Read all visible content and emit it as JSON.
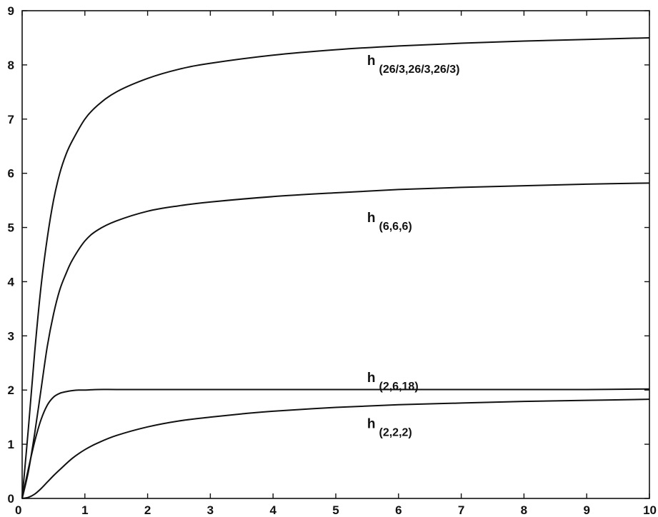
{
  "chart_data": {
    "type": "line",
    "title": "",
    "xlabel": "",
    "ylabel": "",
    "xlim": [
      0,
      10
    ],
    "ylim": [
      0,
      9
    ],
    "grid": false,
    "x_ticks": [
      0,
      1,
      2,
      3,
      4,
      5,
      6,
      7,
      8,
      9,
      10
    ],
    "y_ticks": [
      0,
      1,
      2,
      3,
      4,
      5,
      6,
      7,
      8,
      9
    ],
    "line_color": "#111111",
    "series": [
      {
        "label_main": "h",
        "label_sub": "(26/3,26/3,26/3)",
        "label_at": [
          5.5,
          8.0
        ],
        "x": [
          0,
          0.1,
          0.2,
          0.3,
          0.4,
          0.5,
          0.6,
          0.7,
          0.8,
          1.0,
          1.2,
          1.5,
          2.0,
          2.5,
          3.0,
          4.0,
          5.0,
          6.0,
          7.0,
          8.0,
          9.0,
          10.0
        ],
        "y": [
          0,
          1.3,
          2.7,
          3.9,
          4.8,
          5.5,
          6.0,
          6.35,
          6.6,
          7.0,
          7.25,
          7.5,
          7.75,
          7.92,
          8.03,
          8.18,
          8.28,
          8.35,
          8.4,
          8.44,
          8.47,
          8.5
        ]
      },
      {
        "label_main": "h",
        "label_sub": "(6,6,6)",
        "label_at": [
          5.5,
          5.1
        ],
        "x": [
          0,
          0.1,
          0.2,
          0.3,
          0.4,
          0.5,
          0.6,
          0.7,
          0.8,
          1.0,
          1.2,
          1.5,
          2.0,
          2.5,
          3.0,
          4.0,
          5.0,
          6.0,
          7.0,
          8.0,
          9.0,
          10.0
        ],
        "y": [
          0,
          0.5,
          1.2,
          2.0,
          2.8,
          3.4,
          3.85,
          4.15,
          4.4,
          4.75,
          4.95,
          5.12,
          5.3,
          5.4,
          5.47,
          5.57,
          5.64,
          5.7,
          5.74,
          5.77,
          5.8,
          5.82
        ]
      },
      {
        "label_main": "h",
        "label_sub": "(2,6,18)",
        "label_at": [
          5.5,
          2.15
        ],
        "x": [
          0,
          0.1,
          0.2,
          0.3,
          0.4,
          0.5,
          0.6,
          0.7,
          0.8,
          0.9,
          1.0,
          1.2,
          1.5,
          2.0,
          3.0,
          4.0,
          5.0,
          6.0,
          7.0,
          8.0,
          9.0,
          10.0
        ],
        "y": [
          0,
          0.55,
          1.05,
          1.45,
          1.72,
          1.87,
          1.94,
          1.97,
          1.99,
          2.0,
          2.0,
          2.01,
          2.01,
          2.01,
          2.01,
          2.01,
          2.01,
          2.01,
          2.01,
          2.01,
          2.01,
          2.02
        ]
      },
      {
        "label_main": "h",
        "label_sub": "(2,2,2)",
        "label_at": [
          5.5,
          1.3
        ],
        "x": [
          0,
          0.1,
          0.2,
          0.3,
          0.4,
          0.5,
          0.6,
          0.8,
          1.0,
          1.2,
          1.5,
          2.0,
          2.5,
          3.0,
          3.5,
          4.0,
          5.0,
          6.0,
          7.0,
          8.0,
          9.0,
          10.0
        ],
        "y": [
          0,
          0.02,
          0.08,
          0.18,
          0.3,
          0.42,
          0.53,
          0.74,
          0.9,
          1.02,
          1.16,
          1.32,
          1.43,
          1.5,
          1.56,
          1.61,
          1.68,
          1.73,
          1.76,
          1.79,
          1.81,
          1.83
        ]
      }
    ]
  }
}
